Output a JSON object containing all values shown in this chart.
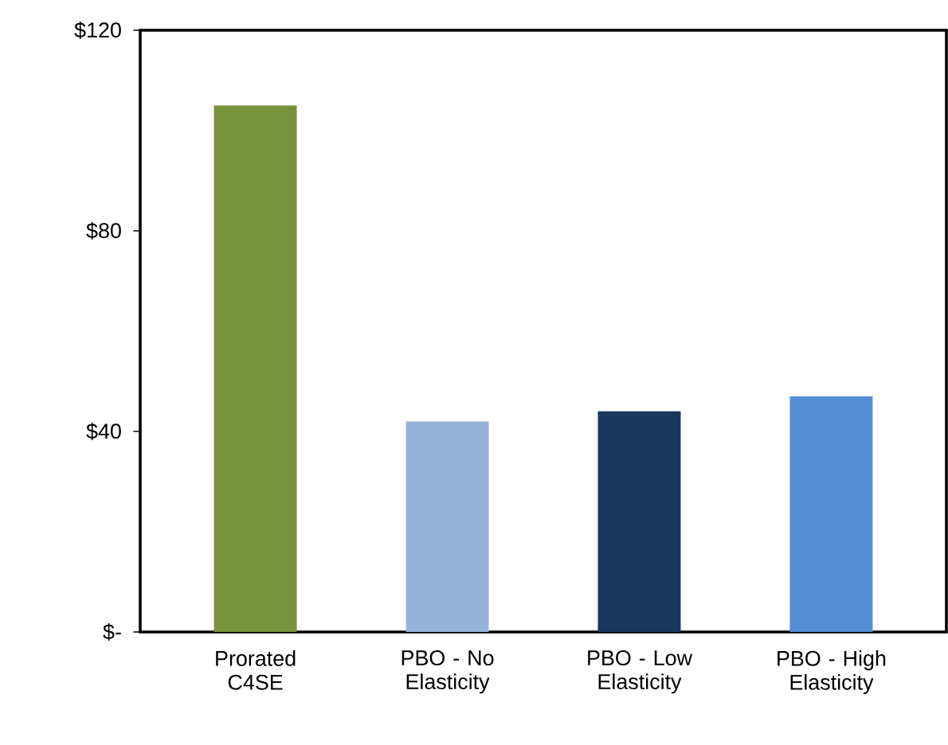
{
  "chart_data": {
    "type": "bar",
    "categories": [
      "Prorated C4SE",
      "PBO - No Elasticity",
      "PBO - Low Elasticity",
      "PBO - High Elasticity"
    ],
    "values": [
      105,
      42,
      44,
      47
    ],
    "colors": [
      "#77933c",
      "#95b3d7",
      "#17375e",
      "#558ed5"
    ],
    "ylim": [
      0,
      120
    ],
    "yticks": [
      {
        "value": 0,
        "label": "$-"
      },
      {
        "value": 40,
        "label": "$40"
      },
      {
        "value": 80,
        "label": "$80"
      },
      {
        "value": 120,
        "label": "$120"
      }
    ],
    "grid": false
  }
}
